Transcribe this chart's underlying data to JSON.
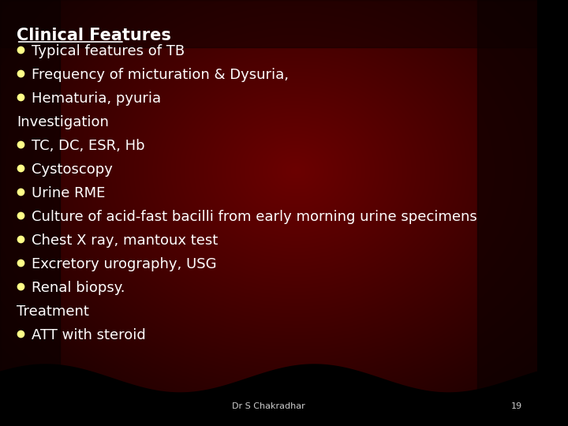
{
  "title": "Clinical Features",
  "title_color": "#FFFFFF",
  "title_underline": true,
  "title_bold": true,
  "bullet_color": "#FFFF88",
  "text_color": "#FFFFFF",
  "section_color": "#FFFFFF",
  "font_family": "DejaVu Sans",
  "lines": [
    {
      "type": "bullet",
      "text": "Typical features of TB"
    },
    {
      "type": "bullet",
      "text": "Frequency of micturation & Dysuria,"
    },
    {
      "type": "bullet",
      "text": "Hematuria, pyuria"
    },
    {
      "type": "section",
      "text": "Investigation"
    },
    {
      "type": "bullet",
      "text": "TC, DC, ESR, Hb"
    },
    {
      "type": "bullet",
      "text": "Cystoscopy"
    },
    {
      "type": "bullet",
      "text": "Urine RME"
    },
    {
      "type": "bullet",
      "text": "Culture of acid-fast bacilli from early morning urine specimens"
    },
    {
      "type": "bullet",
      "text": "Chest X ray, mantoux test"
    },
    {
      "type": "bullet",
      "text": "Excretory urography, USG"
    },
    {
      "type": "bullet",
      "text": "Renal biopsy."
    },
    {
      "type": "section",
      "text": "Treatment"
    },
    {
      "type": "bullet",
      "text": "ATT with steroid"
    }
  ],
  "footer_text": "Dr S Chakradhar",
  "footer_number": "19",
  "bg_color_center": "#6B0000",
  "bg_color_edge": "#1A0000"
}
